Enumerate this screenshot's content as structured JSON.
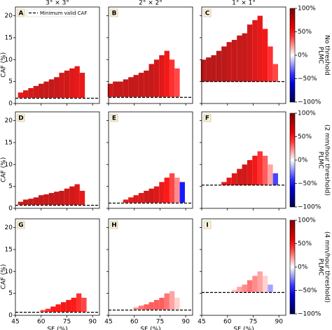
{
  "chart_data": {
    "type": "heatmap",
    "column_titles": [
      "3° × 3°",
      "2° × 2°",
      "1° × 1°"
    ],
    "xlabel": "SF (%)",
    "ylabel": "CAF (%)",
    "legend": "Minimum valid CAF",
    "xlim": [
      45,
      94
    ],
    "ylim": [
      0,
      22
    ],
    "xticks": [
      45,
      60,
      75,
      90
    ],
    "yticks": [
      0,
      5,
      10,
      15,
      20
    ],
    "clim": [
      -100,
      100
    ],
    "cticks": [
      {
        "value": 100,
        "label": "100%"
      },
      {
        "value": 50,
        "label": "50%"
      },
      {
        "value": 0,
        "label": "0%"
      },
      {
        "value": -50,
        "label": "−50%"
      },
      {
        "value": -100,
        "label": "−100%"
      }
    ],
    "colorbar_labels": [
      [
        "PLMC",
        "No threshold"
      ],
      [
        "PLMC",
        "(2 mm/hour threshold)"
      ],
      [
        "PLMC",
        "(4 mm/hour threshold)"
      ]
    ],
    "panels": [
      {
        "label": "A",
        "threshold": 1.2,
        "sf": [
          48,
          51,
          54,
          57,
          60,
          63,
          66,
          69,
          72,
          75,
          78,
          81,
          84
        ],
        "lo": [
          1.3,
          1.3,
          1.3,
          1.3,
          1.3,
          1.3,
          1.3,
          1.3,
          1.3,
          1.3,
          1.3,
          1.3,
          1.3
        ],
        "hi": [
          2.5,
          3,
          3.5,
          4,
          4.5,
          5,
          5.5,
          6,
          7,
          7.5,
          8,
          8.5,
          7
        ],
        "plmc": [
          60,
          65,
          70,
          70,
          75,
          75,
          75,
          75,
          70,
          70,
          65,
          60,
          60
        ]
      },
      {
        "label": "B",
        "threshold": 1.4,
        "sf": [
          46,
          49,
          52,
          55,
          58,
          61,
          64,
          67,
          70,
          73,
          76,
          79,
          82,
          85
        ],
        "lo": [
          1.5,
          1.5,
          1.5,
          1.5,
          1.5,
          1.5,
          1.5,
          1.5,
          1.5,
          1.5,
          1.5,
          1.5,
          1.5,
          1.5
        ],
        "hi": [
          4.5,
          5,
          5,
          5.5,
          6,
          6.5,
          7,
          7.5,
          9,
          10,
          11,
          12,
          10,
          8
        ],
        "plmc": [
          70,
          75,
          75,
          75,
          75,
          75,
          75,
          75,
          75,
          70,
          65,
          55,
          45,
          40
        ]
      },
      {
        "label": "C",
        "threshold": 5,
        "sf": [
          46,
          49,
          52,
          55,
          58,
          61,
          64,
          67,
          70,
          73,
          76,
          79,
          82,
          85,
          88
        ],
        "lo": [
          5,
          5,
          5,
          5,
          5,
          5,
          5,
          5,
          5,
          5,
          5,
          5,
          5,
          5,
          5
        ],
        "hi": [
          10,
          10.5,
          11,
          12,
          13,
          14,
          14.5,
          15.5,
          16,
          18,
          19,
          20,
          17,
          13,
          9
        ],
        "plmc": [
          80,
          80,
          80,
          80,
          80,
          75,
          75,
          75,
          75,
          70,
          65,
          60,
          55,
          45,
          40
        ]
      },
      {
        "label": "D",
        "threshold": 0.7,
        "sf": [
          48,
          51,
          54,
          57,
          60,
          63,
          66,
          69,
          72,
          75,
          78,
          81,
          84
        ],
        "lo": [
          0.8,
          0.8,
          0.8,
          0.8,
          0.8,
          0.8,
          0.8,
          0.8,
          0.8,
          0.8,
          0.8,
          0.8,
          0.8
        ],
        "hi": [
          1.5,
          2,
          2.2,
          2.5,
          3,
          3.2,
          3.5,
          3.8,
          4,
          4.5,
          5,
          5.5,
          4
        ],
        "plmc": [
          70,
          75,
          75,
          75,
          75,
          75,
          75,
          75,
          75,
          70,
          70,
          65,
          60
        ]
      },
      {
        "label": "E",
        "threshold": 1.2,
        "sf": [
          55,
          58,
          61,
          64,
          67,
          70,
          73,
          76,
          79,
          82,
          85,
          88
        ],
        "lo": [
          1.3,
          1.3,
          1.3,
          1.3,
          1.3,
          1.3,
          1.3,
          1.3,
          1.3,
          1.3,
          1.3,
          1.3
        ],
        "hi": [
          2,
          2.5,
          3,
          3.5,
          4,
          4.5,
          5,
          6,
          7,
          8,
          7,
          6
        ],
        "plmc": [
          60,
          60,
          65,
          65,
          70,
          70,
          65,
          60,
          50,
          40,
          25,
          -50
        ]
      },
      {
        "label": "F",
        "threshold": 5.3,
        "sf": [
          58,
          61,
          64,
          67,
          70,
          73,
          76,
          79,
          82,
          85,
          88
        ],
        "lo": [
          5.3,
          5.3,
          5.3,
          5.3,
          5.3,
          5.3,
          5.3,
          5.3,
          5.3,
          5.3,
          5.3
        ],
        "hi": [
          6,
          7,
          8,
          9,
          10,
          11,
          12,
          13,
          12,
          10,
          8
        ],
        "plmc": [
          60,
          60,
          65,
          70,
          70,
          65,
          55,
          45,
          35,
          20,
          -40
        ]
      },
      {
        "label": "G",
        "threshold": 0.7,
        "sf": [
          61,
          64,
          67,
          70,
          73,
          76,
          79,
          82,
          85
        ],
        "lo": [
          0.8,
          0.8,
          0.8,
          0.8,
          0.8,
          0.8,
          0.8,
          0.8,
          0.8
        ],
        "hi": [
          1.2,
          1.5,
          2,
          2.5,
          3,
          3.5,
          4,
          5,
          4
        ],
        "plmc": [
          40,
          45,
          50,
          50,
          55,
          55,
          50,
          45,
          40
        ]
      },
      {
        "label": "H",
        "threshold": 1.2,
        "sf": [
          61,
          64,
          67,
          70,
          73,
          76,
          79,
          82,
          85
        ],
        "lo": [
          1.3,
          1.3,
          1.3,
          1.3,
          1.3,
          1.3,
          1.3,
          1.3,
          1.3
        ],
        "hi": [
          1.8,
          2.2,
          2.5,
          3,
          3.5,
          4,
          5,
          5.5,
          4
        ],
        "plmc": [
          25,
          30,
          35,
          35,
          35,
          35,
          30,
          20,
          10
        ]
      },
      {
        "label": "I",
        "threshold": 5.2,
        "sf": [
          64,
          67,
          70,
          73,
          76,
          79,
          82,
          85
        ],
        "lo": [
          5.3,
          5.3,
          5.3,
          5.3,
          5.3,
          5.3,
          5.3,
          5.3
        ],
        "hi": [
          5.8,
          6.5,
          7,
          8,
          9,
          10,
          9,
          7
        ],
        "plmc": [
          15,
          20,
          25,
          30,
          25,
          20,
          10,
          -20
        ]
      }
    ]
  }
}
